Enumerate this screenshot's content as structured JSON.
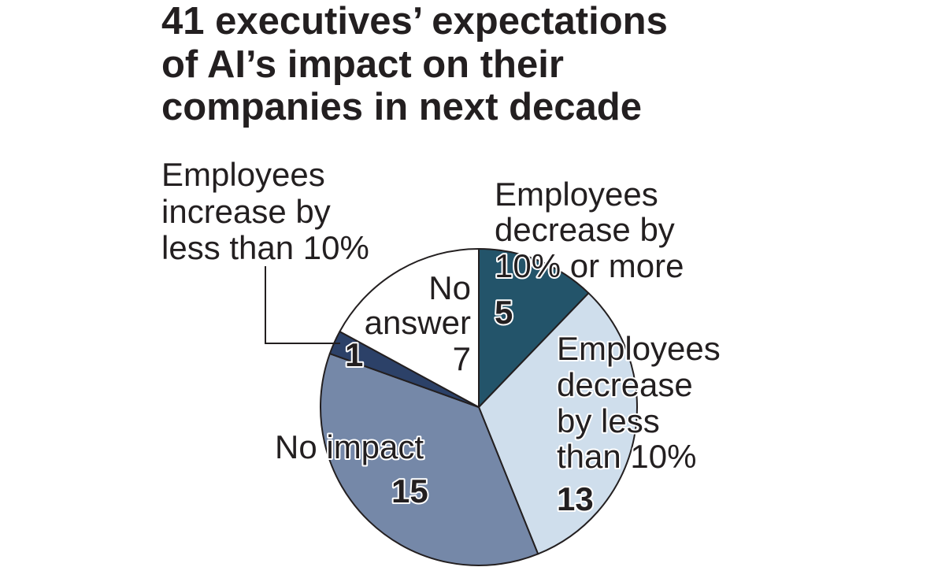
{
  "chart_data": {
    "type": "pie",
    "title": [
      "41 executives’ expectations",
      "of AI’s impact on their",
      "companies in next decade"
    ],
    "slices": [
      {
        "name": "Employees decrease by 10% or more",
        "label_lines": [
          "Employees",
          "decrease by",
          "10% or more"
        ],
        "value": 5,
        "color": "#23546a"
      },
      {
        "name": "Employees decrease by less than 10%",
        "label_lines": [
          "Employees",
          "decrease",
          "by less",
          "than 10%"
        ],
        "value": 13,
        "color": "#cfdeec"
      },
      {
        "name": "No impact",
        "label_lines": [
          "No impact"
        ],
        "value": 15,
        "color": "#7588a8"
      },
      {
        "name": "Employees increase by less than 10%",
        "label_lines": [
          "Employees",
          "increase by",
          "less than 10%"
        ],
        "value": 1,
        "color": "#2c4168"
      },
      {
        "name": "No answer",
        "label_lines": [
          "No",
          "answer"
        ],
        "value": 7,
        "color": "#ffffff"
      }
    ],
    "total": 41
  }
}
